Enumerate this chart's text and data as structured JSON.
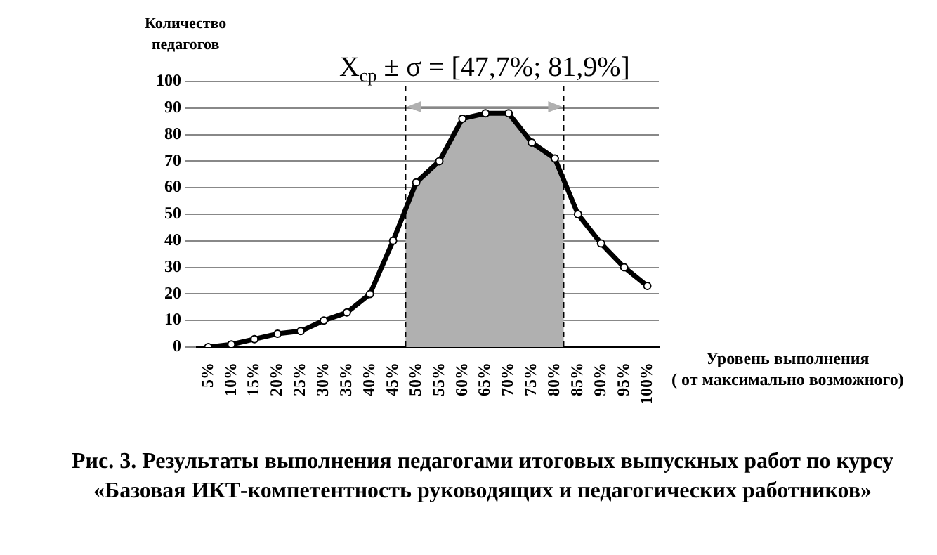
{
  "chart_data": {
    "type": "line",
    "title": "Рис. 3. Результаты выполнения педагогами итоговых выпускных работ по курсу «Базовая ИКТ-компетентность руководящих и педагогических работников»",
    "xlabel": "Уровень выполнения\n( от максимально возможного)",
    "ylabel": "Количество\nпедагогов",
    "x": [
      5,
      10,
      15,
      20,
      25,
      30,
      35,
      40,
      45,
      50,
      55,
      60,
      65,
      70,
      75,
      80,
      85,
      90,
      95,
      100
    ],
    "series": [
      {
        "color": "#000000",
        "values": [
          0,
          1,
          3,
          5,
          6,
          10,
          13,
          20,
          40,
          62,
          70,
          86,
          88,
          88,
          77,
          71,
          50,
          39,
          30,
          23
        ]
      }
    ],
    "xlim": [
      2.5,
      102.5
    ],
    "xticks": [
      {
        "value": 5,
        "label": "5%"
      },
      {
        "value": 10,
        "label": "10%"
      },
      {
        "value": 15,
        "label": "15%"
      },
      {
        "value": 20,
        "label": "20%"
      },
      {
        "value": 25,
        "label": "25%"
      },
      {
        "value": 30,
        "label": "30%"
      },
      {
        "value": 35,
        "label": "35%"
      },
      {
        "value": 40,
        "label": "40%"
      },
      {
        "value": 45,
        "label": "45%"
      },
      {
        "value": 50,
        "label": "50%"
      },
      {
        "value": 55,
        "label": "55%"
      },
      {
        "value": 60,
        "label": "60%"
      },
      {
        "value": 65,
        "label": "65%"
      },
      {
        "value": 70,
        "label": "70%"
      },
      {
        "value": 75,
        "label": "75%"
      },
      {
        "value": 80,
        "label": "80%"
      },
      {
        "value": 85,
        "label": "85%"
      },
      {
        "value": 90,
        "label": "90%"
      },
      {
        "value": 95,
        "label": "95%"
      },
      {
        "value": 100,
        "label": "100%"
      }
    ],
    "ylim": [
      0,
      100
    ],
    "yticks": [
      0,
      10,
      20,
      30,
      40,
      50,
      60,
      70,
      80,
      90,
      100
    ],
    "bands": [
      {
        "axis": "x",
        "from": 47.7,
        "to": 81.9,
        "label": "X$_{ср}$ ± σ = [47,7%; 81,9%]",
        "color": "#b0b0b0"
      }
    ],
    "ref_lines": [
      {
        "axis": "x",
        "value": 47.7,
        "color": "#000000",
        "line_style": "dashed"
      },
      {
        "axis": "x",
        "value": 81.9,
        "color": "#000000",
        "line_style": "dashed"
      }
    ],
    "grid": "y",
    "legend": false,
    "marker": "circle",
    "line_style": "solid"
  }
}
